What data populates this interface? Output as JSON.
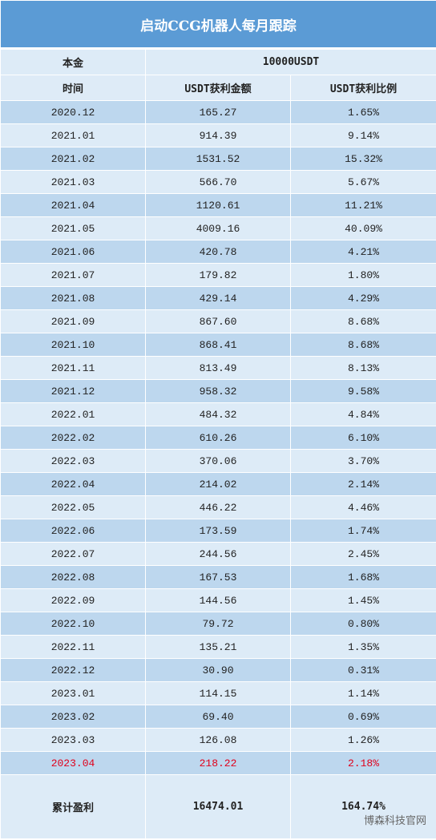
{
  "title": "启动CCG机器人每月跟踪",
  "principal": {
    "label": "本金",
    "value": "10000USDT"
  },
  "columns": [
    "时间",
    "USDT获利金额",
    "USDT获利比例"
  ],
  "rows": [
    [
      "2020.12",
      "165.27",
      "1.65%"
    ],
    [
      "2021.01",
      "914.39",
      "9.14%"
    ],
    [
      "2021.02",
      "1531.52",
      "15.32%"
    ],
    [
      "2021.03",
      "566.70",
      "5.67%"
    ],
    [
      "2021.04",
      "1120.61",
      "11.21%"
    ],
    [
      "2021.05",
      "4009.16",
      "40.09%"
    ],
    [
      "2021.06",
      "420.78",
      "4.21%"
    ],
    [
      "2021.07",
      "179.82",
      "1.80%"
    ],
    [
      "2021.08",
      "429.14",
      "4.29%"
    ],
    [
      "2021.09",
      "867.60",
      "8.68%"
    ],
    [
      "2021.10",
      "868.41",
      "8.68%"
    ],
    [
      "2021.11",
      "813.49",
      "8.13%"
    ],
    [
      "2021.12",
      "958.32",
      "9.58%"
    ],
    [
      "2022.01",
      "484.32",
      "4.84%"
    ],
    [
      "2022.02",
      "610.26",
      "6.10%"
    ],
    [
      "2022.03",
      "370.06",
      "3.70%"
    ],
    [
      "2022.04",
      "214.02",
      "2.14%"
    ],
    [
      "2022.05",
      "446.22",
      "4.46%"
    ],
    [
      "2022.06",
      "173.59",
      "1.74%"
    ],
    [
      "2022.07",
      "244.56",
      "2.45%"
    ],
    [
      "2022.08",
      "167.53",
      "1.68%"
    ],
    [
      "2022.09",
      "144.56",
      "1.45%"
    ],
    [
      "2022.10",
      "79.72",
      "0.80%"
    ],
    [
      "2022.11",
      "135.21",
      "1.35%"
    ],
    [
      "2022.12",
      "30.90",
      "0.31%"
    ],
    [
      "2023.01",
      "114.15",
      "1.14%"
    ],
    [
      "2023.02",
      "69.40",
      "0.69%"
    ],
    [
      "2023.03",
      "126.08",
      "1.26%"
    ],
    [
      "2023.04",
      "218.22",
      "2.18%"
    ]
  ],
  "total": [
    "累计盈利",
    "16474.01",
    "164.74%"
  ],
  "watermark": "博森科技官网"
}
